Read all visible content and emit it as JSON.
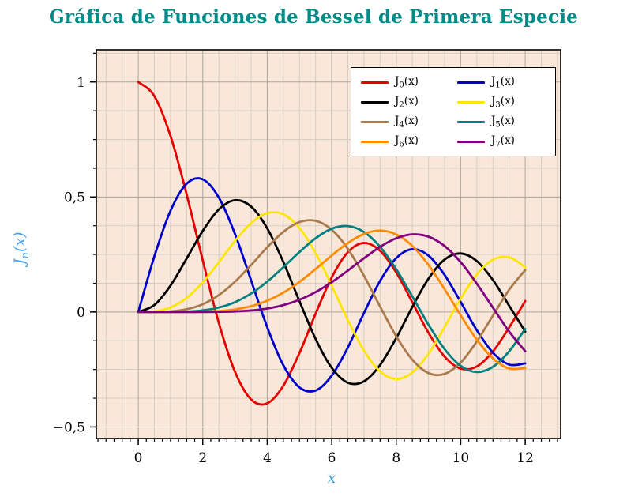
{
  "chart_data": {
    "type": "line",
    "title": "Gráfica de Funciones de Bessel de Primera Especie",
    "xlabel": "x",
    "ylabel": "J_n(x)",
    "xlim": [
      -1.3,
      13.1
    ],
    "ylim": [
      -0.55,
      1.14
    ],
    "grid": true,
    "legend_position": "top-right",
    "x_ticks": [
      {
        "value": 0,
        "label": "0"
      },
      {
        "value": 2,
        "label": "2"
      },
      {
        "value": 4,
        "label": "4"
      },
      {
        "value": 6,
        "label": "6"
      },
      {
        "value": 8,
        "label": "8"
      },
      {
        "value": 10,
        "label": "10"
      },
      {
        "value": 12,
        "label": "12"
      }
    ],
    "y_ticks": [
      {
        "value": -0.5,
        "label": "−0,5"
      },
      {
        "value": 0,
        "label": "0"
      },
      {
        "value": 0.5,
        "label": "0,5"
      },
      {
        "value": 1,
        "label": "1"
      }
    ],
    "colors": {
      "title": "#008b8b",
      "axis_label": "#42a0f0",
      "plot_background": "#f9e8d9",
      "grid_minor": "#d6cdc4",
      "grid_major": "#b3a99f",
      "frame": "#000000"
    },
    "x": [
      0,
      0.5,
      1,
      1.5,
      2,
      2.5,
      3,
      3.5,
      4,
      4.5,
      5,
      5.5,
      6,
      6.5,
      7,
      7.5,
      8,
      8.5,
      9,
      9.5,
      10,
      10.5,
      11,
      11.5,
      12
    ],
    "series": [
      {
        "id": "J0",
        "label": "J_0(x)",
        "color": "#e60000",
        "values": [
          1.0,
          0.9385,
          0.7652,
          0.5118,
          0.2239,
          -0.0484,
          -0.2601,
          -0.3801,
          -0.3971,
          -0.3205,
          -0.1776,
          -0.0068,
          0.1506,
          0.2601,
          0.3001,
          0.2663,
          0.1717,
          0.0419,
          -0.0903,
          -0.1939,
          -0.2459,
          -0.2366,
          -0.1712,
          -0.0677,
          0.0477
        ]
      },
      {
        "id": "J1",
        "label": "J_1(x)",
        "color": "#0000cc",
        "values": [
          0,
          0.2423,
          0.4401,
          0.5579,
          0.5767,
          0.4971,
          0.3391,
          0.1374,
          -0.066,
          -0.2311,
          -0.3276,
          -0.3414,
          -0.2767,
          -0.1538,
          -0.0047,
          0.1352,
          0.2346,
          0.2731,
          0.2453,
          0.1613,
          0.0435,
          -0.0789,
          -0.1768,
          -0.2284,
          -0.2234
        ]
      },
      {
        "id": "J2",
        "label": "J_2(x)",
        "color": "#000000",
        "values": [
          0,
          0.0306,
          0.1149,
          0.2321,
          0.3528,
          0.4461,
          0.4861,
          0.4586,
          0.3641,
          0.2178,
          0.0466,
          -0.1173,
          -0.2429,
          -0.3074,
          -0.3014,
          -0.2303,
          -0.113,
          0.0223,
          0.1448,
          0.2279,
          0.2546,
          0.2216,
          0.139,
          0.0279,
          -0.0849
        ]
      },
      {
        "id": "J3",
        "label": "J_3(x)",
        "color": "#ffe600",
        "values": [
          0,
          0.0026,
          0.0196,
          0.061,
          0.1289,
          0.2166,
          0.3091,
          0.3868,
          0.4302,
          0.4247,
          0.3648,
          0.2561,
          0.1148,
          -0.0353,
          -0.1676,
          -0.2581,
          -0.2911,
          -0.2626,
          -0.1809,
          -0.0653,
          0.0584,
          0.1633,
          0.2273,
          0.2381,
          0.1951
        ]
      },
      {
        "id": "J4",
        "label": "J_4(x)",
        "color": "#aa7a4d",
        "values": [
          0,
          0.0002,
          0.0025,
          0.0118,
          0.034,
          0.0738,
          0.132,
          0.2044,
          0.2811,
          0.3484,
          0.3912,
          0.3967,
          0.3576,
          0.2748,
          0.1578,
          0.0238,
          -0.1054,
          -0.2077,
          -0.2655,
          -0.2691,
          -0.2196,
          -0.1283,
          -0.015,
          0.0963,
          0.1825
        ]
      },
      {
        "id": "J5",
        "label": "J_5(x)",
        "color": "#008080",
        "values": [
          0,
          0.0,
          0.0002,
          0.0018,
          0.007,
          0.0195,
          0.043,
          0.0804,
          0.1321,
          0.1947,
          0.2611,
          0.3209,
          0.3621,
          0.3736,
          0.3479,
          0.2835,
          0.1858,
          0.0671,
          -0.055,
          -0.1613,
          -0.2341,
          -0.2611,
          -0.2383,
          -0.1711,
          -0.0735
        ]
      },
      {
        "id": "J6",
        "label": "J_6(x)",
        "color": "#ff8b00",
        "values": [
          0,
          0.0,
          0.0,
          0.0002,
          0.0012,
          0.0042,
          0.0114,
          0.0254,
          0.0491,
          0.0843,
          0.131,
          0.1868,
          0.2458,
          0.2999,
          0.3392,
          0.3541,
          0.3376,
          0.2867,
          0.2043,
          0.0993,
          -0.0145,
          -0.1203,
          -0.2016,
          -0.2458,
          -0.2437
        ]
      },
      {
        "id": "J7",
        "label": "J_7(x)",
        "color": "#800080",
        "values": [
          0,
          0.0,
          0.0,
          0.0,
          0.0002,
          0.0008,
          0.0025,
          0.0067,
          0.0152,
          0.03,
          0.0534,
          0.0866,
          0.1296,
          0.1801,
          0.2336,
          0.2832,
          0.3206,
          0.3376,
          0.3275,
          0.2868,
          0.2167,
          0.1236,
          0.0184,
          -0.0846,
          -0.1703
        ]
      }
    ]
  }
}
